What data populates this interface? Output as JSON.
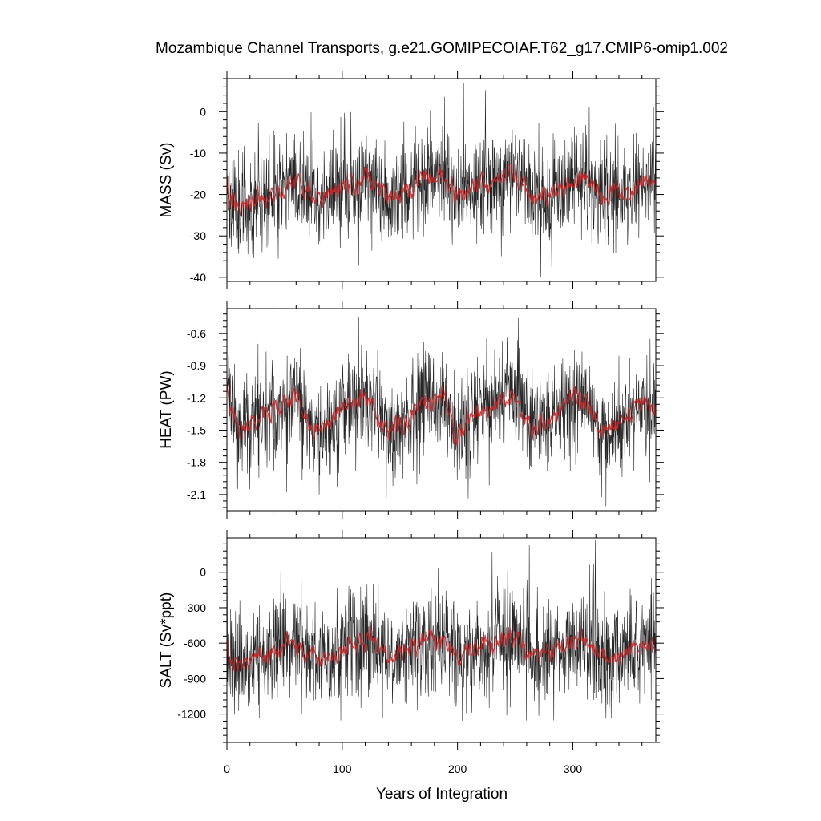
{
  "chart_data": {
    "type": "line",
    "title": "Mozambique Channel Transports, g.e21.GOMIPECOIAF.T62_g17.CMIP6-omip1.002",
    "xlabel": "Years of Integration",
    "xlim": [
      0,
      372
    ],
    "xticks": [
      0,
      100,
      200,
      300
    ],
    "xtick_labels": [
      "0",
      "100",
      "200",
      "300"
    ],
    "colors": {
      "raw": "#000000",
      "smoothed": "#d42020"
    },
    "panels": [
      {
        "ylabel": "MASS (Sv)",
        "ylim": [
          -41,
          8
        ],
        "yticks": [
          0,
          -10,
          -20,
          -30,
          -40
        ],
        "ytick_labels": [
          "0",
          "-10",
          "-20",
          "-30",
          "-40"
        ],
        "anchors_x": [
          0,
          2,
          10,
          20,
          35,
          50,
          62,
          75,
          90,
          110,
          125,
          140,
          160,
          175,
          187,
          200,
          215,
          235,
          250,
          265,
          285,
          300,
          312,
          325,
          340,
          360,
          372
        ],
        "anchors_mean": [
          -16,
          -21,
          -23,
          -22,
          -20,
          -18,
          -17,
          -21,
          -20,
          -17,
          -16,
          -21,
          -18,
          -16,
          -15,
          -21,
          -18,
          -17,
          -16,
          -21,
          -20,
          -16,
          -16,
          -21,
          -20,
          -17,
          -17
        ],
        "raw_spread": 7,
        "smooth_spread": 1.6,
        "raw_clip": [
          -40,
          7
        ],
        "seed": 11
      },
      {
        "ylabel": "HEAT (PW)",
        "ylim": [
          -2.25,
          -0.37
        ],
        "yticks": [
          -0.6,
          -0.9,
          -1.2,
          -1.5,
          -1.8,
          -2.1
        ],
        "ytick_labels": [
          "-0.6",
          "-0.9",
          "-1.2",
          "-1.5",
          "-1.8",
          "-2.1"
        ],
        "anchors_x": [
          0,
          2,
          10,
          20,
          35,
          50,
          62,
          75,
          90,
          110,
          125,
          140,
          160,
          175,
          187,
          200,
          215,
          235,
          250,
          265,
          285,
          300,
          312,
          325,
          340,
          360,
          372
        ],
        "anchors_mean": [
          -0.95,
          -1.25,
          -1.5,
          -1.45,
          -1.35,
          -1.25,
          -1.2,
          -1.5,
          -1.4,
          -1.25,
          -1.2,
          -1.55,
          -1.35,
          -1.25,
          -1.2,
          -1.55,
          -1.35,
          -1.25,
          -1.2,
          -1.5,
          -1.4,
          -1.2,
          -1.2,
          -1.55,
          -1.45,
          -1.25,
          -1.3
        ],
        "raw_spread": 0.27,
        "smooth_spread": 0.06,
        "raw_clip": [
          -2.22,
          -0.4
        ],
        "seed": 23
      },
      {
        "ylabel": "SALT (Sv*ppt)",
        "ylim": [
          -1440,
          290
        ],
        "yticks": [
          0,
          -300,
          -600,
          -900,
          -1200
        ],
        "ytick_labels": [
          "0",
          "-300",
          "-600",
          "-900",
          "-1200"
        ],
        "anchors_x": [
          0,
          2,
          10,
          20,
          35,
          50,
          62,
          75,
          90,
          110,
          125,
          140,
          160,
          175,
          187,
          200,
          215,
          235,
          250,
          265,
          285,
          300,
          312,
          325,
          340,
          360,
          372
        ],
        "anchors_mean": [
          -560,
          -740,
          -800,
          -760,
          -690,
          -620,
          -600,
          -740,
          -700,
          -600,
          -570,
          -720,
          -640,
          -580,
          -560,
          -730,
          -650,
          -600,
          -570,
          -720,
          -680,
          -580,
          -570,
          -740,
          -700,
          -600,
          -620
        ],
        "raw_spread": 250,
        "smooth_spread": 55,
        "raw_clip": [
          -1420,
          270
        ],
        "seed": 37
      }
    ]
  }
}
